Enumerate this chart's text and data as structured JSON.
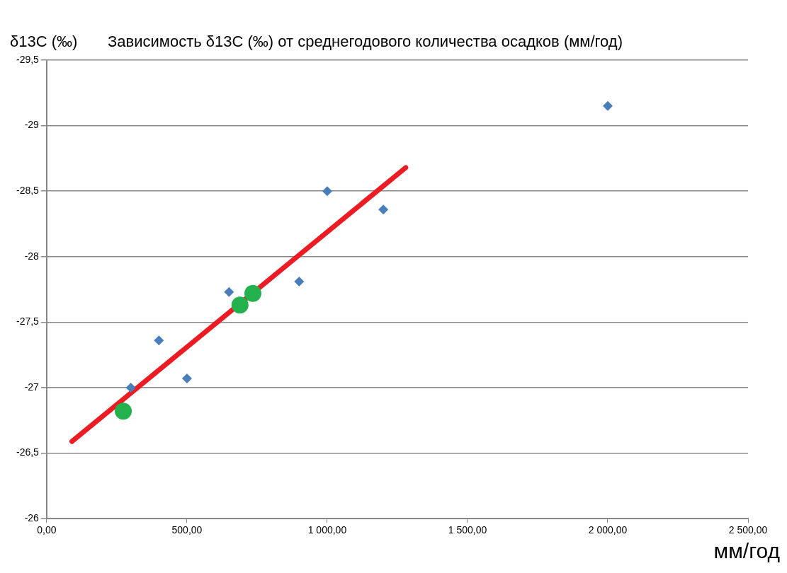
{
  "chart_data": {
    "type": "scatter",
    "title": "Зависимость δ13С (‰) от среднегодового количества осадков (мм/год)",
    "ylabel": "δ13С (‰)",
    "xlabel": "мм/год",
    "xlim": [
      0,
      2500
    ],
    "xticks": [
      {
        "value": 0,
        "label": "0,00"
      },
      {
        "value": 500,
        "label": "500,00"
      },
      {
        "value": 1000,
        "label": "1 000,00"
      },
      {
        "value": 1500,
        "label": "1 500,00"
      },
      {
        "value": 2000,
        "label": "2 000,00"
      },
      {
        "value": 2500,
        "label": "2 500,00"
      }
    ],
    "ylim": [
      -26,
      -29.5
    ],
    "yticks": [
      -26,
      {
        "value": -26.5,
        "label": "-26,5"
      },
      -27,
      {
        "value": -27.5,
        "label": "-27,5"
      },
      -28,
      {
        "value": -28.5,
        "label": "-28,5"
      },
      -29,
      {
        "value": -29.5,
        "label": "-29,5"
      }
    ],
    "grid": "y",
    "series": [
      {
        "type": "scatter",
        "marker": "diamond",
        "color": "#4a7ebb",
        "x": [
          300,
          400,
          500,
          650,
          900,
          1000,
          1200,
          2000
        ],
        "values": [
          -27.0,
          -27.36,
          -27.07,
          -27.73,
          -27.81,
          -28.5,
          -28.36,
          -29.15
        ]
      },
      {
        "type": "scatter",
        "marker": "circle",
        "color": "#22b14c",
        "x": [
          273,
          689,
          735
        ],
        "values": [
          -26.82,
          -27.63,
          -27.72
        ]
      },
      {
        "type": "line",
        "marker": "none",
        "color": "#ed1c24",
        "x": [
          90,
          1280
        ],
        "values": [
          -26.59,
          -28.68
        ]
      }
    ]
  }
}
